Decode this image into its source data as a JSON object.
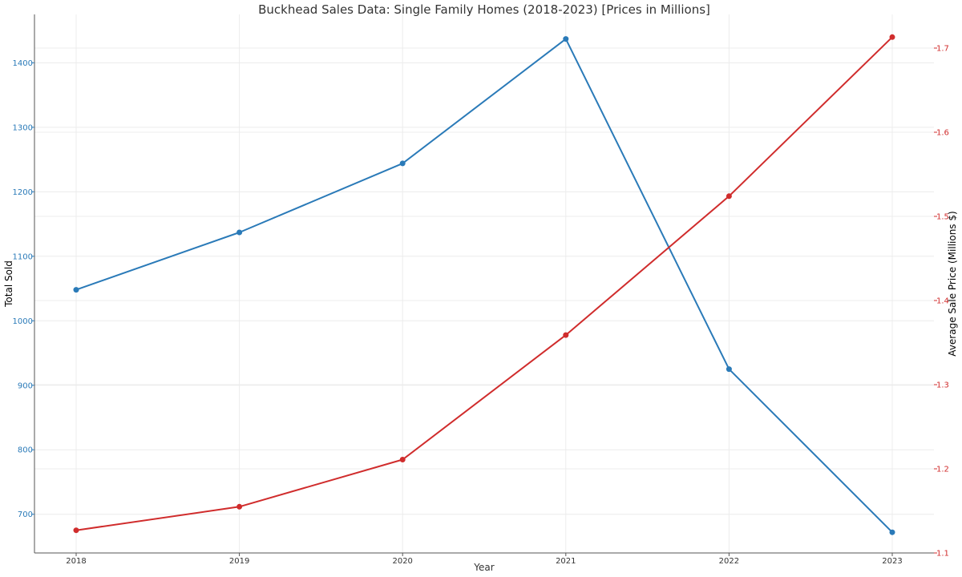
{
  "chart_data": {
    "type": "line",
    "title": "Buckhead Sales Data: Single Family Homes (2018-2023) [Prices in Millions]",
    "xlabel": "Year",
    "categories": [
      "2018",
      "2019",
      "2020",
      "2021",
      "2022",
      "2023"
    ],
    "grid": true,
    "series": [
      {
        "axis": "left",
        "ylabel": "Total Sold",
        "color": "#2a7ab8",
        "values": [
          1048,
          1137,
          1244,
          1437,
          925,
          672
        ],
        "ylim": [
          640,
          1475
        ],
        "ticks": [
          "700",
          "800",
          "900",
          "1000",
          "1100",
          "1200",
          "1300",
          "1400"
        ]
      },
      {
        "axis": "right",
        "ylabel": "Average Sale Price (Millions $)",
        "color": "#d02c2c",
        "values": [
          1.127,
          1.155,
          1.211,
          1.359,
          1.524,
          1.713
        ],
        "ylim": [
          1.1,
          1.74
        ],
        "ticks": [
          "1.1",
          "1.2",
          "1.3",
          "1.4",
          "1.5",
          "1.6",
          "1.7"
        ]
      }
    ]
  }
}
